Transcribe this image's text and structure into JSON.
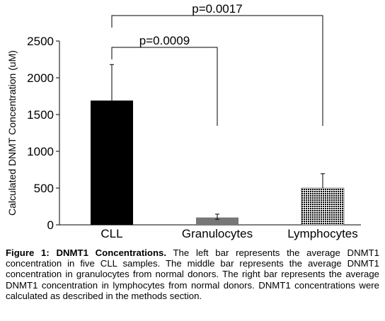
{
  "chart_data": {
    "type": "bar",
    "categories": [
      "CLL",
      "Granulocytes",
      "Lymphocytes"
    ],
    "values": [
      1690,
      100,
      500
    ],
    "error_upper": [
      2180,
      145,
      695
    ],
    "error_lower": [
      1690,
      75,
      500
    ],
    "ylabel": "Calculated DNMT Concentration (uM)",
    "ylim": [
      0,
      2500
    ],
    "yticks": [
      0,
      500,
      1000,
      1500,
      2000,
      2500
    ],
    "grid": false,
    "bar_fills": [
      "solid-black",
      "solid-gray",
      "dotted"
    ],
    "colors": {
      "cll": "#000000",
      "granulocytes": "#777777",
      "lymphocytes": "#000000"
    },
    "annotations": [
      {
        "label": "p=0.0009",
        "from": "CLL",
        "to": "Granulocytes"
      },
      {
        "label": "p=0.0017",
        "from": "CLL",
        "to": "Lymphocytes"
      }
    ]
  },
  "caption": {
    "label": "Figure 1: DNMT1 Concentrations.",
    "text": " The left bar represents the average DNMT1 concentration in five CLL samples. The middle bar represents the average DNMT1 concentration in granulocytes from normal donors. The right bar represents the average DNMT1 concentration in lymphocytes from normal donors. DNMT1 concentrations were calculated as described in the methods section."
  }
}
